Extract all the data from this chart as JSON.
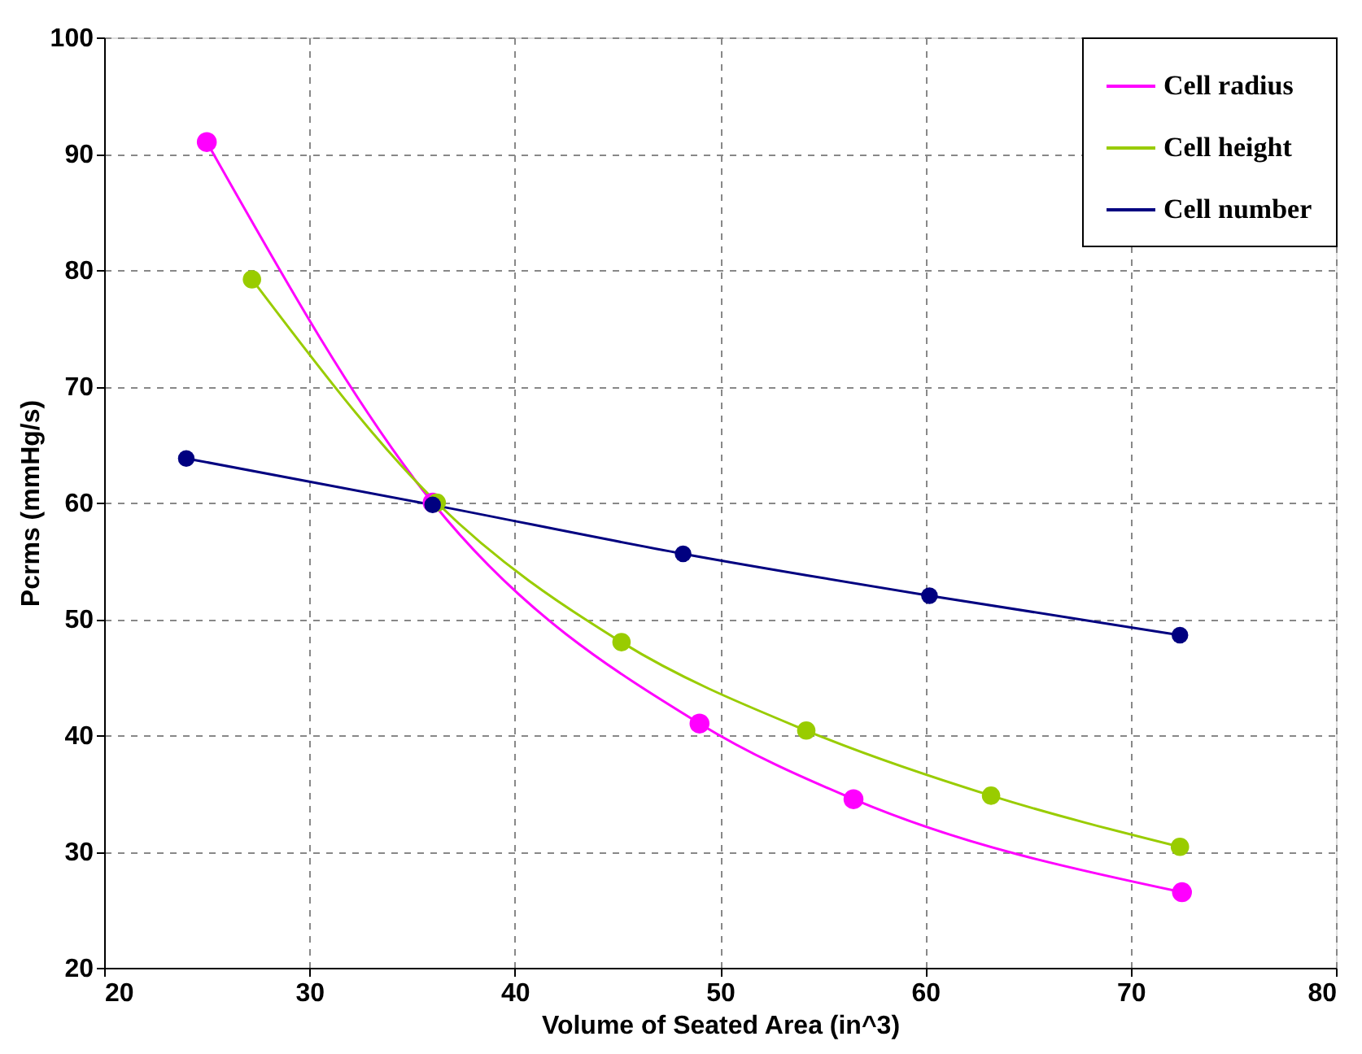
{
  "chart_data": {
    "type": "line",
    "xlabel": "Volume of Seated Area (in^3)",
    "ylabel": "Pcrms (mmHg/s)",
    "xlim": [
      20,
      80
    ],
    "xticks": [
      20,
      30,
      40,
      50,
      60,
      70,
      80
    ],
    "ylim": [
      20,
      100
    ],
    "yticks": [
      20,
      30,
      40,
      50,
      60,
      70,
      80,
      90,
      100
    ],
    "grid": true,
    "legend": "top right",
    "marker": "circle",
    "line_style": "solid",
    "series": [
      {
        "name": "Cell radius",
        "color": "#ff00ff",
        "x": [
          25,
          36,
          49,
          56.5,
          72.5
        ],
        "values": [
          91,
          60,
          41,
          34.5,
          26.5
        ]
      },
      {
        "name": "Cell height",
        "color": "#99cc00",
        "x": [
          27.2,
          36.2,
          45.2,
          54.2,
          63.2,
          72.4
        ],
        "values": [
          79.2,
          60,
          48,
          40.4,
          34.8,
          30.4
        ]
      },
      {
        "name": "Cell number",
        "color": "#000080",
        "x": [
          24,
          36,
          48.2,
          60.2,
          72.4
        ],
        "values": [
          63.8,
          59.8,
          55.6,
          52,
          48.6
        ]
      }
    ]
  }
}
